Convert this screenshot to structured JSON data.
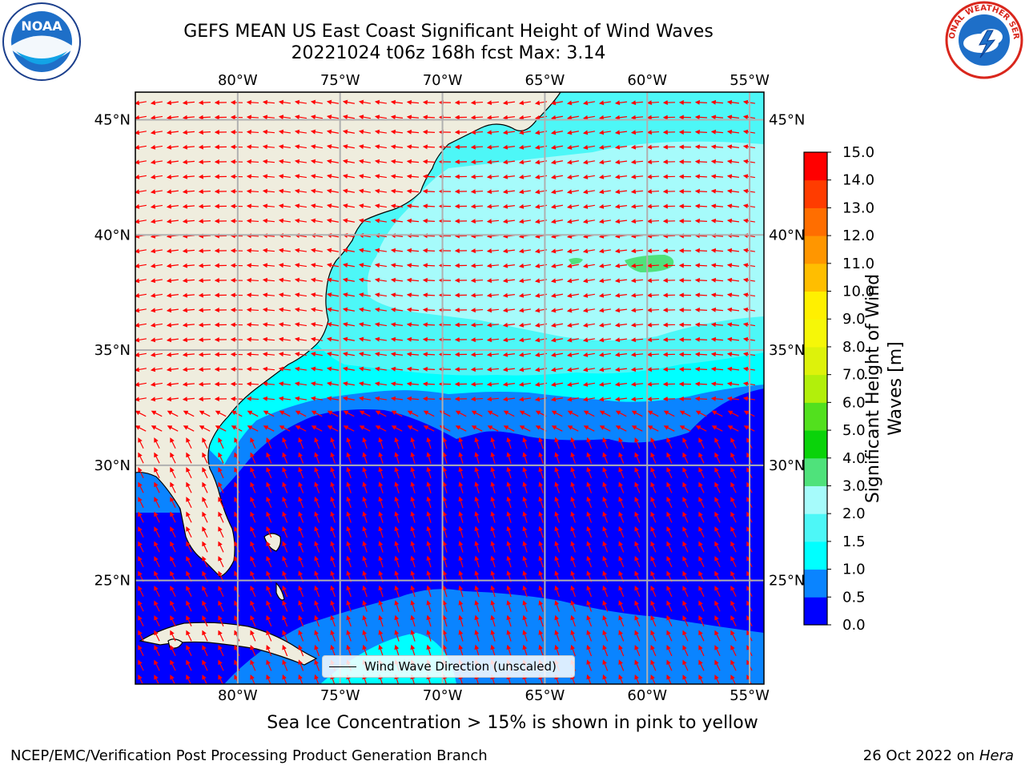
{
  "header": {
    "title_line1": "GEFS MEAN US East Coast Significant Height of Wind Waves",
    "title_line2": "20221024 t06z 168h fcst   Max: 3.14"
  },
  "logos": {
    "left": {
      "icon": "noaa-logo-icon",
      "text": "NOAA"
    },
    "right": {
      "icon": "nws-logo-icon",
      "text": "NATIONAL WEATHER SERVICE"
    }
  },
  "map": {
    "lon_range": [
      -85,
      -54.3
    ],
    "lat_range": [
      20.5,
      46.2
    ],
    "lon_ticks": [
      {
        "value": -80,
        "label": "80°W"
      },
      {
        "value": -75,
        "label": "75°W"
      },
      {
        "value": -70,
        "label": "70°W"
      },
      {
        "value": -65,
        "label": "65°W"
      },
      {
        "value": -60,
        "label": "60°W"
      },
      {
        "value": -55,
        "label": "55°W"
      }
    ],
    "lat_ticks": [
      {
        "value": 45,
        "label": "45°N"
      },
      {
        "value": 40,
        "label": "40°N"
      },
      {
        "value": 35,
        "label": "35°N"
      },
      {
        "value": 30,
        "label": "30°N"
      },
      {
        "value": 25,
        "label": "25°N"
      }
    ],
    "max_value": 3.14,
    "land_color": "#efedde",
    "arrow_color": "#ff0000"
  },
  "colorbar": {
    "label": "Significant Height of Wind Waves [m]",
    "label_line1": "Significant Height of Wind",
    "label_line2": "Waves [m]",
    "tick_labels": [
      "0.0",
      "0.5",
      "1.0",
      "1.5",
      "2.0",
      "3.0",
      "4.0",
      "5.0",
      "6.0",
      "7.0",
      "8.0",
      "9.0",
      "10.0",
      "11.0",
      "12.0",
      "13.0",
      "14.0",
      "15.0"
    ],
    "bins": [
      {
        "from": 0.0,
        "to": 0.5,
        "color": "#0000ff"
      },
      {
        "from": 0.5,
        "to": 1.0,
        "color": "#0a84ff"
      },
      {
        "from": 1.0,
        "to": 1.5,
        "color": "#00ffff"
      },
      {
        "from": 1.5,
        "to": 2.0,
        "color": "#4df7f7"
      },
      {
        "from": 2.0,
        "to": 3.0,
        "color": "#a6fbfb"
      },
      {
        "from": 3.0,
        "to": 4.0,
        "color": "#4fe27b"
      },
      {
        "from": 4.0,
        "to": 5.0,
        "color": "#0ad30a"
      },
      {
        "from": 5.0,
        "to": 6.0,
        "color": "#52e01e"
      },
      {
        "from": 6.0,
        "to": 7.0,
        "color": "#b2ef0b"
      },
      {
        "from": 7.0,
        "to": 8.0,
        "color": "#ddf20b"
      },
      {
        "from": 8.0,
        "to": 9.0,
        "color": "#f6f708"
      },
      {
        "from": 9.0,
        "to": 10.0,
        "color": "#fff000"
      },
      {
        "from": 10.0,
        "to": 11.0,
        "color": "#ffbe00"
      },
      {
        "from": 11.0,
        "to": 12.0,
        "color": "#ff9600"
      },
      {
        "from": 12.0,
        "to": 13.0,
        "color": "#ff6e00"
      },
      {
        "from": 13.0,
        "to": 14.0,
        "color": "#ff3c00"
      },
      {
        "from": 14.0,
        "to": 15.0,
        "color": "#ff0000"
      }
    ]
  },
  "legend": {
    "label": "Wind Wave Direction (unscaled)"
  },
  "ice_note": "Sea Ice Concentration > 15% is shown in pink to yellow",
  "footer": {
    "left": "NCEP/EMC/Verification Post Processing Product Generation Branch",
    "right_date": "26 Oct 2022 on",
    "right_machine": "Hera"
  }
}
